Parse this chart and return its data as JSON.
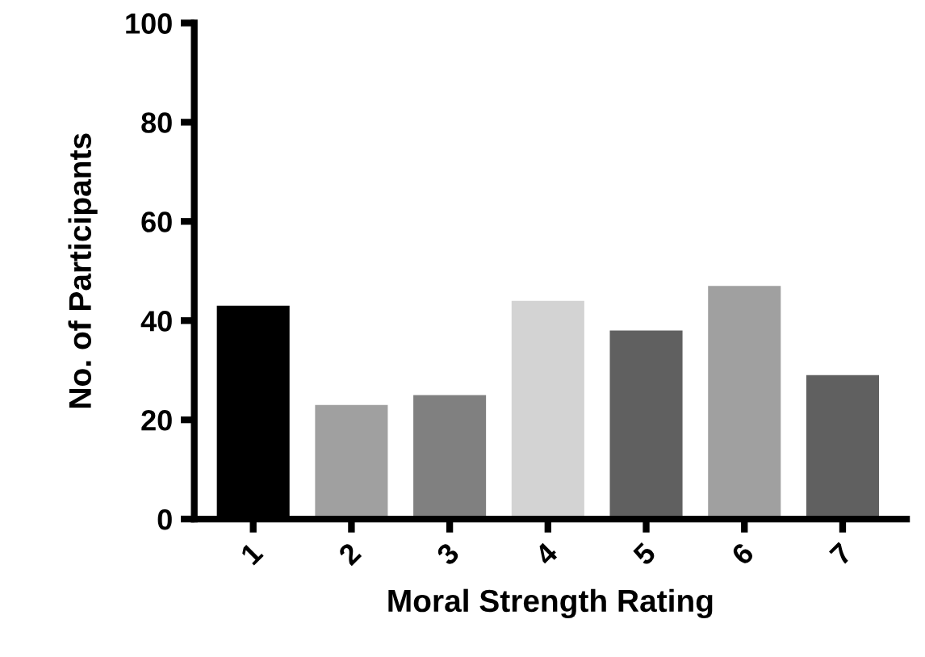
{
  "chart_data": {
    "type": "bar",
    "xlabel": "Moral Strength Rating",
    "ylabel": "No. of Participants",
    "categories": [
      "1",
      "2",
      "3",
      "4",
      "5",
      "6",
      "7"
    ],
    "values": [
      43,
      23,
      25,
      44,
      38,
      47,
      29
    ],
    "colors": [
      "#000000",
      "#a0a0a0",
      "#808080",
      "#d3d3d3",
      "#606060",
      "#a0a0a0",
      "#606060"
    ],
    "ylim": [
      0,
      100
    ],
    "yticks": [
      0,
      20,
      40,
      60,
      80,
      100
    ],
    "grid": false,
    "legend": false
  }
}
